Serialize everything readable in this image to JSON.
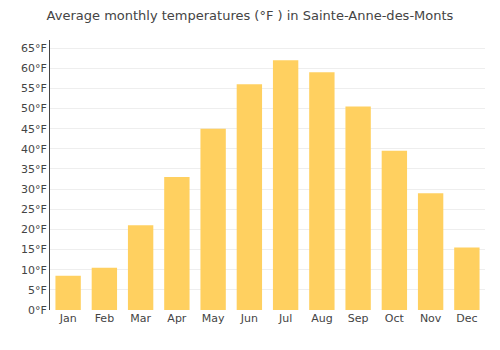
{
  "chart_data": {
    "type": "bar",
    "title": "Average monthly temperatures (°F ) in Sainte-Anne-des-Monts",
    "categories": [
      "Jan",
      "Feb",
      "Mar",
      "Apr",
      "May",
      "Jun",
      "Jul",
      "Aug",
      "Sep",
      "Oct",
      "Nov",
      "Dec"
    ],
    "values": [
      8.5,
      10.5,
      21.0,
      33.0,
      45.0,
      56.0,
      62.0,
      59.0,
      50.5,
      39.5,
      29.0,
      15.5
    ],
    "color": "#FFD060",
    "ylim": [
      0,
      67
    ],
    "yticks": [
      {
        "value": 0,
        "label": "0°F"
      },
      {
        "value": 5,
        "label": "5°F"
      },
      {
        "value": 10,
        "label": "10°F"
      },
      {
        "value": 15,
        "label": "15°F"
      },
      {
        "value": 20,
        "label": "20°F"
      },
      {
        "value": 25,
        "label": "25°F"
      },
      {
        "value": 30,
        "label": "30°F"
      },
      {
        "value": 35,
        "label": "35°F"
      },
      {
        "value": 40,
        "label": "40°F"
      },
      {
        "value": 45,
        "label": "45°F"
      },
      {
        "value": 50,
        "label": "50°F"
      },
      {
        "value": 55,
        "label": "55°F"
      },
      {
        "value": 60,
        "label": "60°F"
      },
      {
        "value": 65,
        "label": "65°F"
      }
    ],
    "grid": true
  }
}
